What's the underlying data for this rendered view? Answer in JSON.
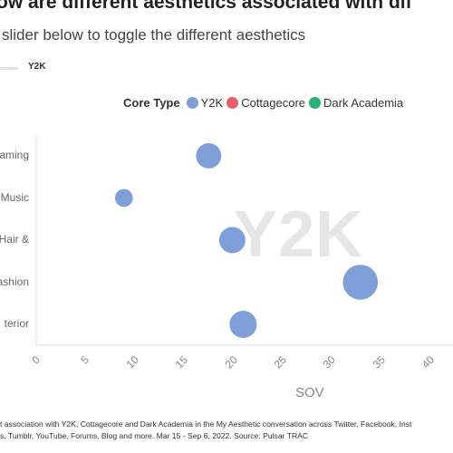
{
  "title": "ow are different aesthetics associated with dif",
  "subtitle": "slider below to toggle the different aesthetics",
  "slider": {
    "selected": "Y2K"
  },
  "legend": {
    "title": "Core Type",
    "items": [
      {
        "label": "Y2K",
        "color": "#7f9fd8"
      },
      {
        "label": "Cottagecore",
        "color": "#e4606d"
      },
      {
        "label": "Dark Academia",
        "color": "#26b37a"
      }
    ]
  },
  "watermark": "Y2K",
  "footnote": {
    "line1": "t association with Y2K, Cottagecore and Dark Academia in the My Aesthetic conversation across Twitter, Facebook, Inst",
    "line2": "s, Tumblr, YouTube, Forums, Blog and more. Mar 15 - Sep 6, 2022. Source: Pulsar TRAC"
  },
  "chart_data": {
    "type": "scatter",
    "xlabel": "SOV",
    "xlim": [
      0,
      40
    ],
    "xticks": [
      "0",
      "5",
      "10",
      "15",
      "20",
      "25",
      "30",
      "35",
      "40"
    ],
    "categories": [
      "aming",
      "Music",
      "& Hair",
      "ashion",
      "terior"
    ],
    "series": [
      {
        "name": "Y2K",
        "points": [
          {
            "category": "aming",
            "x": 17.5,
            "size": 2.4
          },
          {
            "category": "Music",
            "x": 8.9,
            "size": 1.2
          },
          {
            "category": "& Hair",
            "x": 19.9,
            "size": 2.6
          },
          {
            "category": "ashion",
            "x": 32.9,
            "size": 4.6
          },
          {
            "category": "terior",
            "x": 21.0,
            "size": 2.8
          }
        ]
      }
    ]
  }
}
